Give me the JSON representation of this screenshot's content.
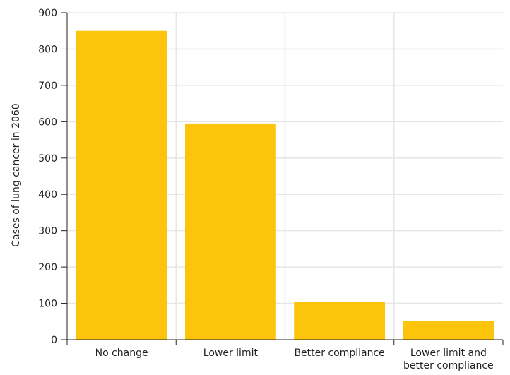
{
  "chart_data": {
    "type": "bar",
    "categories": [
      "No change",
      "Lower limit",
      "Better compliance",
      "Lower limit and better compliance"
    ],
    "category_label_lines": [
      [
        "No change"
      ],
      [
        "Lower limit"
      ],
      [
        "Better compliance"
      ],
      [
        "Lower limit and",
        "better compliance"
      ]
    ],
    "values": [
      850,
      595,
      105,
      52
    ],
    "xlabel": "",
    "ylabel": "Cases of lung cancer in 2060",
    "ylim": [
      0,
      900
    ],
    "yticks": [
      0,
      100,
      200,
      300,
      400,
      500,
      600,
      700,
      800,
      900
    ],
    "grid": true,
    "colors": {
      "bar": "#FCC40A",
      "grid": "#e6e6e6",
      "axis": "#222222"
    }
  }
}
